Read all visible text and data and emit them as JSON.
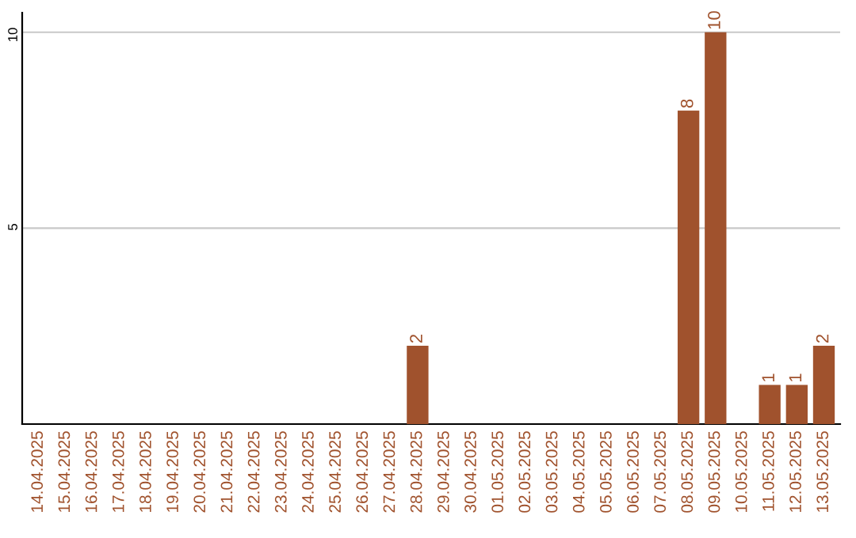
{
  "chart_data": {
    "type": "bar",
    "categories": [
      "14.04.2025",
      "15.04.2025",
      "16.04.2025",
      "17.04.2025",
      "18.04.2025",
      "19.04.2025",
      "20.04.2025",
      "21.04.2025",
      "22.04.2025",
      "23.04.2025",
      "24.04.2025",
      "25.04.2025",
      "26.04.2025",
      "27.04.2025",
      "28.04.2025",
      "29.04.2025",
      "30.04.2025",
      "01.05.2025",
      "02.05.2025",
      "03.05.2025",
      "04.05.2025",
      "05.05.2025",
      "06.05.2025",
      "07.05.2025",
      "08.05.2025",
      "09.05.2025",
      "10.05.2025",
      "11.05.2025",
      "12.05.2025",
      "13.05.2025"
    ],
    "values": [
      0,
      0,
      0,
      0,
      0,
      0,
      0,
      0,
      0,
      0,
      0,
      0,
      0,
      0,
      2,
      0,
      0,
      0,
      0,
      0,
      0,
      0,
      0,
      0,
      8,
      10,
      0,
      1,
      1,
      2
    ],
    "value_labels": [
      null,
      null,
      null,
      null,
      null,
      null,
      null,
      null,
      null,
      null,
      null,
      null,
      null,
      null,
      "2",
      null,
      null,
      null,
      null,
      null,
      null,
      null,
      null,
      null,
      "8",
      "10",
      null,
      "1",
      "1",
      "2"
    ],
    "color": "#a0522d",
    "ylim": [
      0,
      10.5
    ],
    "yticks": [
      5,
      10
    ],
    "grid": "y"
  }
}
